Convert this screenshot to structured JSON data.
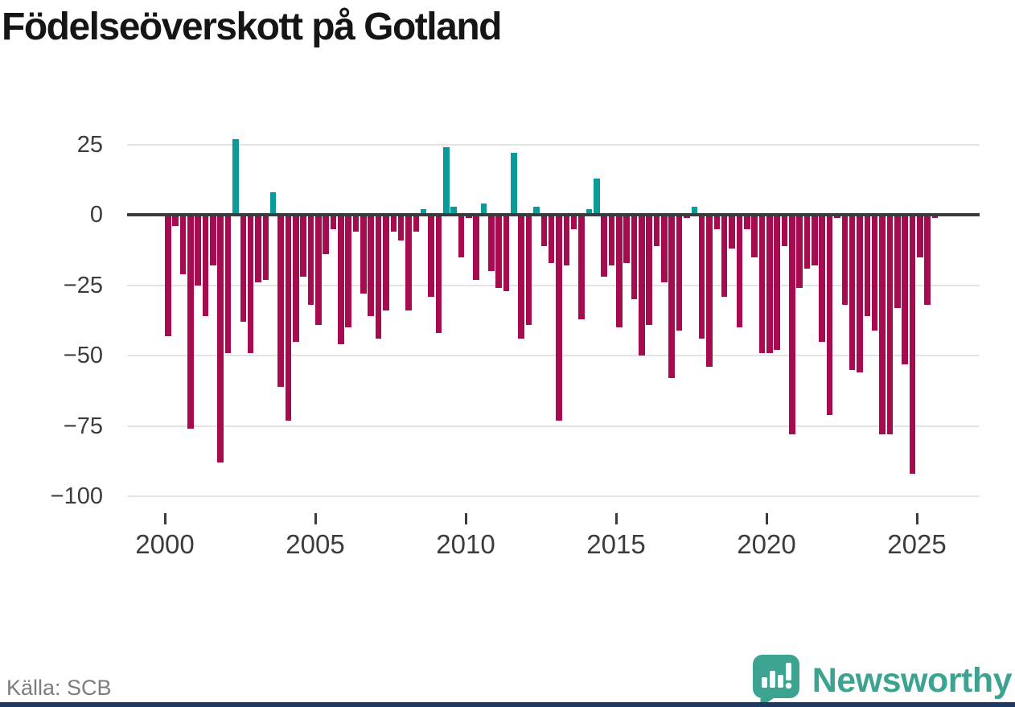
{
  "title": "Födelseöverskott på Gotland",
  "source_label": "Källa: SCB",
  "branding": {
    "logo_text": "Newsworthy",
    "logo_color": "#3ba390",
    "footer_bar_color": "#1e3a64"
  },
  "colors": {
    "positive_bar": "#0a9a9a",
    "negative_bar": "#a50b4e",
    "zero_axis": "#3b3b3b",
    "grid": "#e4e4e4",
    "tick_label": "#3c3c3c"
  },
  "chart_data": {
    "type": "bar",
    "title": "Födelseöverskott på Gotland",
    "frequency": "quarterly",
    "start": "2000-Q1",
    "end": "2025-Q3",
    "values": [
      -43,
      -4,
      -21,
      -76,
      -25,
      -36,
      -18,
      -88,
      -49,
      27,
      -38,
      -49,
      -24,
      -23,
      8,
      -61,
      -73,
      -45,
      -22,
      -32,
      -39,
      -14,
      -5,
      -46,
      -40,
      -6,
      -28,
      -36,
      -44,
      -34,
      -6,
      -9,
      -34,
      -6,
      2,
      -29,
      -42,
      24,
      3,
      -15,
      -1,
      -23,
      4,
      -20,
      -26,
      -27,
      22,
      -44,
      -39,
      3,
      -11,
      -17,
      -73,
      -18,
      -5,
      -37,
      2,
      13,
      -22,
      -18,
      -40,
      -17,
      -30,
      -50,
      -39,
      -11,
      -24,
      -58,
      -41,
      -1,
      3,
      -44,
      -54,
      -5,
      -29,
      -12,
      -40,
      -5,
      -15,
      -49,
      -49,
      -48,
      -11,
      -78,
      -26,
      -19,
      -18,
      -45,
      -71,
      -1,
      -32,
      -55,
      -56,
      -36,
      -41,
      -78,
      -78,
      -33,
      -53,
      -92,
      -15,
      -32,
      -1
    ],
    "x_ticks_years": [
      2000,
      2005,
      2010,
      2015,
      2020,
      2025
    ],
    "x_tick_labels": [
      "2000",
      "2005",
      "2010",
      "2015",
      "2020",
      "2025"
    ],
    "y_ticks": [
      25,
      0,
      -25,
      -50,
      -75,
      -100
    ],
    "y_tick_labels": [
      "25",
      "0",
      "−25",
      "−50",
      "−75",
      "−100"
    ],
    "ylim": [
      -100,
      30
    ],
    "grid": true,
    "legend": "none",
    "bar_color_rule": "negative values dark red, positive values teal"
  }
}
